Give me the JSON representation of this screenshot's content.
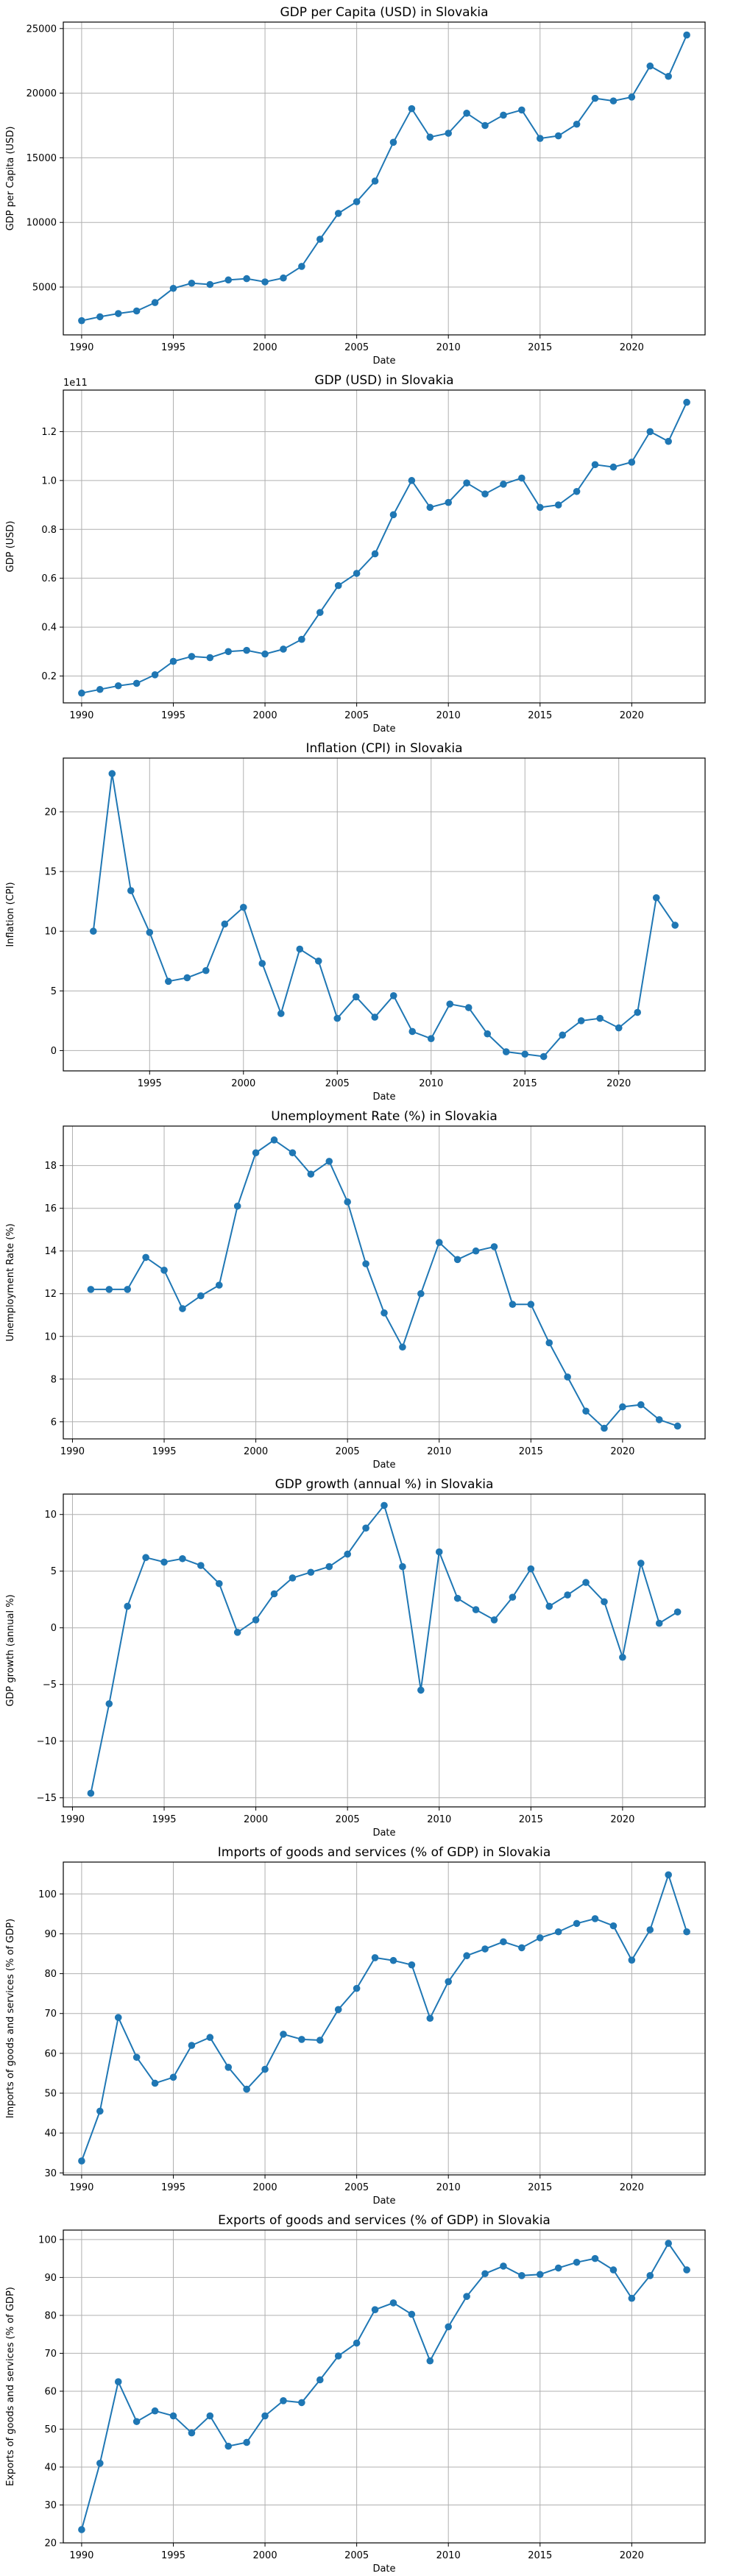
{
  "colors": {
    "series": "#1f77b4",
    "grid": "#b0b0b0"
  },
  "chart_data": [
    {
      "type": "line",
      "title": "GDP per Capita (USD) in Slovakia",
      "xlabel": "Date",
      "ylabel": "GDP per Capita (USD)",
      "grid": true,
      "xlim": [
        1989,
        2024
      ],
      "ylim": [
        1300,
        25500
      ],
      "xticks": [
        1990,
        1995,
        2000,
        2005,
        2010,
        2015,
        2020
      ],
      "yticks": [
        5000,
        10000,
        15000,
        20000,
        25000
      ],
      "ytick_labels": [
        "5000",
        "10000",
        "15000",
        "20000",
        "25000"
      ],
      "offset_text": "",
      "series": [
        {
          "x": [
            1990,
            1991,
            1992,
            1993,
            1994,
            1995,
            1996,
            1997,
            1998,
            1999,
            2000,
            2001,
            2002,
            2003,
            2004,
            2005,
            2006,
            2007,
            2008,
            2009,
            2010,
            2011,
            2012,
            2013,
            2014,
            2015,
            2016,
            2017,
            2018,
            2019,
            2020,
            2021,
            2022,
            2023
          ],
          "y": [
            2400,
            2700,
            2950,
            3150,
            3800,
            4900,
            5300,
            5200,
            5550,
            5650,
            5400,
            5700,
            6600,
            8700,
            10700,
            11600,
            13200,
            16200,
            18800,
            16600,
            16900,
            18450,
            17500,
            18300,
            18700,
            16500,
            16700,
            17600,
            19600,
            19400,
            19700,
            22100,
            21300,
            24500
          ]
        }
      ]
    },
    {
      "type": "line",
      "title": "GDP (USD) in Slovakia",
      "xlabel": "Date",
      "ylabel": "GDP (USD)",
      "grid": true,
      "xlim": [
        1989,
        2024
      ],
      "ylim": [
        0.09,
        1.37
      ],
      "xticks": [
        1990,
        1995,
        2000,
        2005,
        2010,
        2015,
        2020
      ],
      "yticks": [
        0.2,
        0.4,
        0.6,
        0.8,
        1.0,
        1.2
      ],
      "ytick_labels": [
        "0.2",
        "0.4",
        "0.6",
        "0.8",
        "1.0",
        "1.2"
      ],
      "offset_text": "1e11",
      "series": [
        {
          "x": [
            1990,
            1991,
            1992,
            1993,
            1994,
            1995,
            1996,
            1997,
            1998,
            1999,
            2000,
            2001,
            2002,
            2003,
            2004,
            2005,
            2006,
            2007,
            2008,
            2009,
            2010,
            2011,
            2012,
            2013,
            2014,
            2015,
            2016,
            2017,
            2018,
            2019,
            2020,
            2021,
            2022,
            2023
          ],
          "y": [
            0.13,
            0.145,
            0.16,
            0.17,
            0.205,
            0.26,
            0.28,
            0.275,
            0.3,
            0.305,
            0.29,
            0.31,
            0.35,
            0.46,
            0.57,
            0.62,
            0.7,
            0.86,
            1.0,
            0.89,
            0.91,
            0.99,
            0.945,
            0.985,
            1.01,
            0.89,
            0.9,
            0.955,
            1.065,
            1.055,
            1.075,
            1.2,
            1.16,
            1.32
          ]
        }
      ]
    },
    {
      "type": "line",
      "title": "Inflation (CPI) in Slovakia",
      "xlabel": "Date",
      "ylabel": "Inflation (CPI)",
      "grid": true,
      "xlim": [
        1990.4,
        2024.6
      ],
      "ylim": [
        -1.7,
        24.5
      ],
      "xticks": [
        1995,
        2000,
        2005,
        2010,
        2015,
        2020
      ],
      "yticks": [
        0,
        5,
        10,
        15,
        20
      ],
      "ytick_labels": [
        "0",
        "5",
        "10",
        "15",
        "20"
      ],
      "offset_text": "",
      "series": [
        {
          "x": [
            1992,
            1993,
            1994,
            1995,
            1996,
            1997,
            1998,
            1999,
            2000,
            2001,
            2002,
            2003,
            2004,
            2005,
            2006,
            2007,
            2008,
            2009,
            2010,
            2011,
            2012,
            2013,
            2014,
            2015,
            2016,
            2017,
            2018,
            2019,
            2020,
            2021,
            2022,
            2023
          ],
          "y": [
            10.0,
            23.2,
            13.4,
            9.9,
            5.8,
            6.1,
            6.7,
            10.6,
            12.0,
            7.3,
            3.1,
            8.5,
            7.5,
            2.7,
            4.5,
            2.8,
            4.6,
            1.6,
            1.0,
            3.9,
            3.6,
            1.4,
            -0.1,
            -0.3,
            -0.5,
            1.3,
            2.5,
            2.7,
            1.9,
            3.2,
            12.8,
            10.5
          ]
        }
      ]
    },
    {
      "type": "line",
      "title": "Unemployment Rate (%) in Slovakia",
      "xlabel": "Date",
      "ylabel": "Unemployment Rate (%)",
      "grid": true,
      "xlim": [
        1989.5,
        2024.5
      ],
      "ylim": [
        5.2,
        19.85
      ],
      "xticks": [
        1990,
        1995,
        2000,
        2005,
        2010,
        2015,
        2020
      ],
      "yticks": [
        6,
        8,
        10,
        12,
        14,
        16,
        18
      ],
      "ytick_labels": [
        "6",
        "8",
        "10",
        "12",
        "14",
        "16",
        "18"
      ],
      "offset_text": "",
      "series": [
        {
          "x": [
            1991,
            1992,
            1993,
            1994,
            1995,
            1996,
            1997,
            1998,
            1999,
            2000,
            2001,
            2002,
            2003,
            2004,
            2005,
            2006,
            2007,
            2008,
            2009,
            2010,
            2011,
            2012,
            2013,
            2014,
            2015,
            2016,
            2017,
            2018,
            2019,
            2020,
            2021,
            2022,
            2023
          ],
          "y": [
            12.2,
            12.2,
            12.2,
            13.7,
            13.1,
            11.3,
            11.9,
            12.4,
            16.1,
            18.6,
            19.2,
            18.6,
            17.6,
            18.2,
            16.3,
            13.4,
            11.1,
            9.5,
            12.0,
            14.4,
            13.6,
            14.0,
            14.2,
            11.5,
            11.5,
            9.7,
            8.1,
            6.5,
            5.7,
            6.7,
            6.8,
            6.1,
            5.8
          ]
        }
      ]
    },
    {
      "type": "line",
      "title": "GDP growth (annual %) in Slovakia",
      "xlabel": "Date",
      "ylabel": "GDP growth (annual %)",
      "grid": true,
      "xlim": [
        1989.5,
        2024.5
      ],
      "ylim": [
        -15.8,
        11.8
      ],
      "xticks": [
        1990,
        1995,
        2000,
        2005,
        2010,
        2015,
        2020
      ],
      "yticks": [
        -15,
        -10,
        -5,
        0,
        5,
        10
      ],
      "ytick_labels": [
        "−15",
        "−10",
        "−5",
        "0",
        "5",
        "10"
      ],
      "offset_text": "",
      "series": [
        {
          "x": [
            1991,
            1992,
            1993,
            1994,
            1995,
            1996,
            1997,
            1998,
            1999,
            2000,
            2001,
            2002,
            2003,
            2004,
            2005,
            2006,
            2007,
            2008,
            2009,
            2010,
            2011,
            2012,
            2013,
            2014,
            2015,
            2016,
            2017,
            2018,
            2019,
            2020,
            2021,
            2022,
            2023
          ],
          "y": [
            -14.6,
            -6.7,
            1.9,
            6.2,
            5.8,
            6.1,
            5.5,
            3.9,
            -0.4,
            0.7,
            3.0,
            4.4,
            4.9,
            5.4,
            6.5,
            8.8,
            10.8,
            5.4,
            -5.5,
            6.7,
            2.6,
            1.6,
            0.7,
            2.7,
            5.2,
            1.9,
            2.9,
            4.0,
            2.3,
            -2.6,
            5.7,
            0.4,
            1.4
          ]
        }
      ]
    },
    {
      "type": "line",
      "title": "Imports of goods and services (% of GDP) in Slovakia",
      "xlabel": "Date",
      "ylabel": "Imports of goods and services (% of GDP)",
      "grid": true,
      "xlim": [
        1989,
        2024
      ],
      "ylim": [
        29.5,
        108
      ],
      "xticks": [
        1990,
        1995,
        2000,
        2005,
        2010,
        2015,
        2020
      ],
      "yticks": [
        30,
        40,
        50,
        60,
        70,
        80,
        90,
        100
      ],
      "ytick_labels": [
        "30",
        "40",
        "50",
        "60",
        "70",
        "80",
        "90",
        "100"
      ],
      "offset_text": "",
      "series": [
        {
          "x": [
            1990,
            1991,
            1992,
            1993,
            1994,
            1995,
            1996,
            1997,
            1998,
            1999,
            2000,
            2001,
            2002,
            2003,
            2004,
            2005,
            2006,
            2007,
            2008,
            2009,
            2010,
            2011,
            2012,
            2013,
            2014,
            2015,
            2016,
            2017,
            2018,
            2019,
            2020,
            2021,
            2022,
            2023
          ],
          "y": [
            33.0,
            45.5,
            69.0,
            59.0,
            52.5,
            54.0,
            62.0,
            64.0,
            56.5,
            51.0,
            56.0,
            64.8,
            63.5,
            63.3,
            71.0,
            76.3,
            84.0,
            83.3,
            82.2,
            68.8,
            78.0,
            84.5,
            86.2,
            88.0,
            86.5,
            89.0,
            90.5,
            92.6,
            93.8,
            92.0,
            83.4,
            91.0,
            104.8,
            90.5
          ]
        }
      ]
    },
    {
      "type": "line",
      "title": "Exports of goods and services (% of GDP) in Slovakia",
      "xlabel": "Date",
      "ylabel": "Exports of goods and services (% of GDP)",
      "grid": true,
      "xlim": [
        1989,
        2024
      ],
      "ylim": [
        20,
        102.5
      ],
      "xticks": [
        1990,
        1995,
        2000,
        2005,
        2010,
        2015,
        2020
      ],
      "yticks": [
        20,
        30,
        40,
        50,
        60,
        70,
        80,
        90,
        100
      ],
      "ytick_labels": [
        "20",
        "30",
        "40",
        "50",
        "60",
        "70",
        "80",
        "90",
        "100"
      ],
      "offset_text": "",
      "series": [
        {
          "x": [
            1990,
            1991,
            1992,
            1993,
            1994,
            1995,
            1996,
            1997,
            1998,
            1999,
            2000,
            2001,
            2002,
            2003,
            2004,
            2005,
            2006,
            2007,
            2008,
            2009,
            2010,
            2011,
            2012,
            2013,
            2014,
            2015,
            2016,
            2017,
            2018,
            2019,
            2020,
            2021,
            2022,
            2023
          ],
          "y": [
            23.5,
            41.0,
            62.5,
            52.0,
            54.8,
            53.5,
            49.0,
            53.5,
            45.5,
            46.5,
            53.5,
            57.5,
            57.0,
            63.0,
            69.3,
            72.7,
            81.5,
            83.3,
            80.3,
            68.0,
            77.0,
            85.0,
            91.0,
            93.0,
            90.5,
            90.8,
            92.5,
            94.0,
            95.0,
            92.0,
            84.5,
            90.5,
            99.0,
            92.0
          ]
        }
      ]
    }
  ]
}
